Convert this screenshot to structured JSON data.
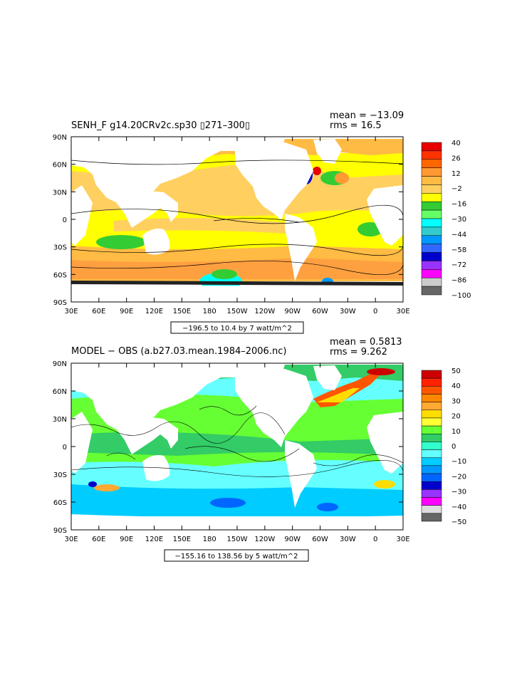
{
  "chart_data": [
    {
      "type": "heatmap",
      "title": "SENH_F g14.20CRv2c.sp30 ▯271–300▯",
      "stats": [
        "mean = −13.09",
        "rms = 16.5"
      ],
      "contour_info": "−196.5 to 10.4 by 7 watt/m^2",
      "x_ticks": [
        "30E",
        "60E",
        "90E",
        "120E",
        "150E",
        "180",
        "150W",
        "120W",
        "90W",
        "60W",
        "30W",
        "0",
        "30E"
      ],
      "y_ticks": [
        "90N",
        "60N",
        "30N",
        "0",
        "30S",
        "60S",
        "90S"
      ],
      "colorbar_labels": [
        "40",
        "26",
        "12",
        "−2",
        "−16",
        "−30",
        "−44",
        "−58",
        "−72",
        "−86",
        "−100"
      ],
      "colors": [
        "#e60000",
        "#ff3300",
        "#ff6600",
        "#ff9933",
        "#ffbb44",
        "#ffd060",
        "#ffff00",
        "#33cc33",
        "#66ff66",
        "#00ffff",
        "#33cccc",
        "#0099ff",
        "#3366ff",
        "#0000cc",
        "#9933ff",
        "#ff00ff",
        "#cccccc",
        "#666666"
      ]
    },
    {
      "type": "heatmap",
      "title": "MODEL − OBS (a.b27.03.mean.1984–2006.nc)",
      "stats": [
        "mean = 0.5813",
        "rms = 9.262"
      ],
      "contour_info": "−155.16 to 138.56 by 5 watt/m^2",
      "x_ticks": [
        "30E",
        "60E",
        "90E",
        "120E",
        "150E",
        "180",
        "150W",
        "120W",
        "90W",
        "60W",
        "30W",
        "0",
        "30E"
      ],
      "y_ticks": [
        "90N",
        "60N",
        "30N",
        "0",
        "30S",
        "60S",
        "90S"
      ],
      "colorbar_labels": [
        "50",
        "40",
        "30",
        "20",
        "10",
        "0",
        "−10",
        "−20",
        "−30",
        "−40",
        "−50"
      ],
      "colors": [
        "#cc0000",
        "#ff2200",
        "#ff5500",
        "#ff8800",
        "#ffaa33",
        "#ffdd00",
        "#ffff33",
        "#66ff33",
        "#33cc66",
        "#33ffcc",
        "#66ffff",
        "#00ccff",
        "#0099ff",
        "#0066ff",
        "#0000cc",
        "#9933ff",
        "#ff00ff",
        "#dddddd",
        "#666666"
      ]
    }
  ]
}
